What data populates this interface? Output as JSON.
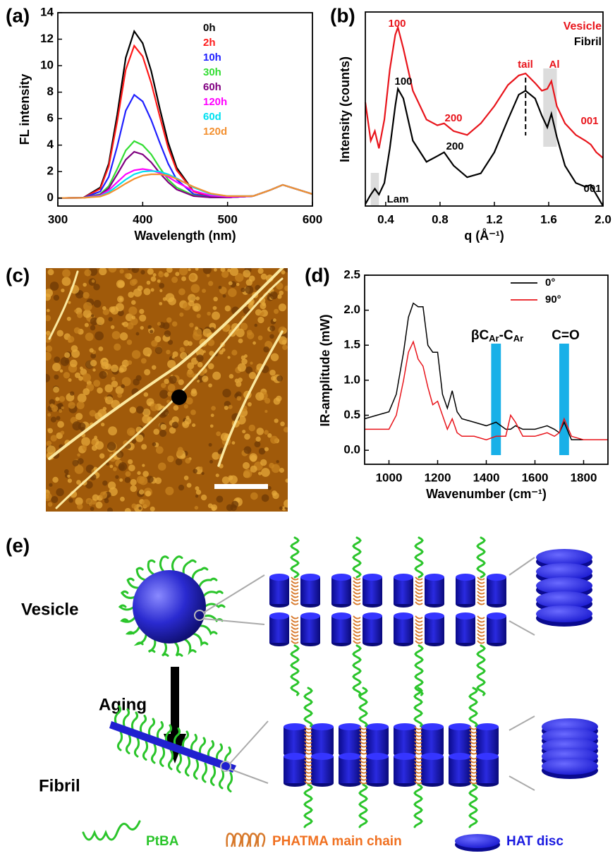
{
  "chart_data": [
    {
      "type": "line",
      "panel_label": "(a)",
      "xlabel": "Wavelength (nm)",
      "ylabel": "FL intensity",
      "x": [
        300,
        330,
        350,
        360,
        370,
        380,
        390,
        400,
        410,
        420,
        430,
        440,
        460,
        480,
        500,
        530,
        550,
        565,
        580,
        600
      ],
      "xlim": [
        300,
        600
      ],
      "ylim": [
        -0.6,
        14
      ],
      "xticks": [
        300,
        400,
        500,
        600
      ],
      "yticks": [
        0,
        2,
        4,
        6,
        8,
        10,
        12,
        14
      ],
      "series": [
        {
          "name": "0h",
          "color": "#000000",
          "values": [
            0,
            0.03,
            0.8,
            2.6,
            6.3,
            10.6,
            12.6,
            11.7,
            9.6,
            6.8,
            4.2,
            2.3,
            0.5,
            0.1,
            0.05,
            0.15,
            0.6,
            1.0,
            0.7,
            0.3
          ]
        },
        {
          "name": "2h",
          "color": "#ff1a1a",
          "values": [
            0,
            0.03,
            0.7,
            2.4,
            5.8,
            9.7,
            11.5,
            10.7,
            8.7,
            6.2,
            3.8,
            2.1,
            0.5,
            0.1,
            0.05,
            0.15,
            0.6,
            1.0,
            0.7,
            0.3
          ]
        },
        {
          "name": "10h",
          "color": "#1f1fff",
          "values": [
            0,
            0.02,
            0.5,
            1.6,
            3.9,
            6.6,
            7.8,
            7.3,
            5.9,
            4.2,
            2.6,
            1.4,
            0.3,
            0.08,
            0.05,
            0.15,
            0.6,
            1.0,
            0.7,
            0.3
          ]
        },
        {
          "name": "30h",
          "color": "#33dd33",
          "values": [
            0,
            0.02,
            0.3,
            0.9,
            2.2,
            3.6,
            4.3,
            4.0,
            3.3,
            2.3,
            1.4,
            0.8,
            0.2,
            0.05,
            0.05,
            0.15,
            0.6,
            1.0,
            0.7,
            0.3
          ]
        },
        {
          "name": "60h",
          "color": "#800080",
          "values": [
            0,
            0.02,
            0.25,
            0.75,
            1.8,
            2.9,
            3.5,
            3.3,
            2.7,
            1.9,
            1.2,
            0.65,
            0.15,
            0.05,
            0.05,
            0.15,
            0.6,
            1.0,
            0.7,
            0.3
          ]
        },
        {
          "name": "120h",
          "color": "#ff00ff",
          "values": [
            0,
            0.02,
            0.2,
            0.6,
            1.2,
            1.8,
            2.1,
            2.2,
            2.1,
            1.9,
            1.6,
            1.2,
            0.55,
            0.2,
            0.1,
            0.15,
            0.6,
            1.0,
            0.7,
            0.3
          ]
        },
        {
          "name": "60d",
          "color": "#00e0f0",
          "values": [
            0,
            0.02,
            0.15,
            0.45,
            0.9,
            1.4,
            1.8,
            2.0,
            2.05,
            2.0,
            1.8,
            1.5,
            0.8,
            0.3,
            0.15,
            0.15,
            0.6,
            1.0,
            0.7,
            0.3
          ]
        },
        {
          "name": "120d",
          "color": "#f39030",
          "values": [
            0,
            0.02,
            0.12,
            0.35,
            0.7,
            1.1,
            1.45,
            1.7,
            1.8,
            1.8,
            1.7,
            1.45,
            0.85,
            0.35,
            0.15,
            0.15,
            0.6,
            1.0,
            0.7,
            0.3
          ]
        }
      ]
    },
    {
      "type": "line",
      "panel_label": "(b)",
      "xlabel": "q (Å⁻¹)",
      "ylabel": "Intensity (counts)",
      "x": [
        0.25,
        0.29,
        0.32,
        0.35,
        0.39,
        0.43,
        0.47,
        0.49,
        0.53,
        0.6,
        0.7,
        0.78,
        0.83,
        0.9,
        1.0,
        1.1,
        1.2,
        1.3,
        1.38,
        1.43,
        1.5,
        1.55,
        1.59,
        1.62,
        1.66,
        1.72,
        1.8,
        1.87,
        1.91,
        1.95,
        2.0
      ],
      "xlim": [
        0.25,
        2.0
      ],
      "ylim": [
        0,
        10.1
      ],
      "xticks": [
        0.4,
        0.8,
        1.2,
        1.6,
        {
          "value": 2,
          "label": "2.0"
        }
      ],
      "series": [
        {
          "name": "Vesicle",
          "color": "#e8141b",
          "values": [
            5.4,
            3.4,
            3.9,
            3.0,
            4.5,
            7.1,
            8.9,
            9.3,
            8.2,
            6.0,
            4.5,
            4.2,
            4.3,
            3.9,
            3.7,
            4.3,
            5.2,
            6.3,
            6.8,
            6.9,
            6.4,
            6.0,
            6.1,
            6.5,
            5.2,
            4.3,
            3.7,
            3.4,
            3.2,
            2.8,
            2.5
          ]
        },
        {
          "name": "Fibril",
          "color": "#000000",
          "values": [
            0.1,
            0.6,
            0.9,
            0.6,
            1.2,
            3.0,
            5.2,
            6.1,
            5.6,
            3.4,
            2.3,
            2.6,
            2.8,
            2.1,
            1.5,
            1.7,
            2.8,
            4.5,
            5.8,
            6.0,
            5.6,
            4.7,
            4.1,
            4.8,
            3.6,
            2.1,
            1.2,
            1.0,
            1.1,
            0.6,
            0
          ]
        }
      ],
      "annotations": [
        {
          "text": "100",
          "color": "#e8141b"
        },
        {
          "text": "200",
          "color": "#e8141b"
        },
        {
          "text": "tail",
          "color": "#e8141b"
        },
        {
          "text": "Al",
          "color": "#e8141b"
        },
        {
          "text": "001",
          "color": "#e8141b"
        },
        {
          "text": "100",
          "color": "#000000"
        },
        {
          "text": "200",
          "color": "#000000"
        },
        {
          "text": "001",
          "color": "#000000"
        },
        {
          "text": "Lam",
          "color": "#000000"
        }
      ]
    },
    {
      "type": "line",
      "panel_label": "(d)",
      "xlabel": "Wavenumber (cm⁻¹)",
      "ylabel": "IR-amplitude (mW)",
      "x": [
        900,
        950,
        1000,
        1030,
        1060,
        1080,
        1100,
        1120,
        1140,
        1160,
        1180,
        1200,
        1220,
        1240,
        1260,
        1280,
        1300,
        1350,
        1400,
        1440,
        1480,
        1500,
        1520,
        1550,
        1600,
        1650,
        1680,
        1700,
        1720,
        1750,
        1800,
        1850,
        1900
      ],
      "xlim": [
        900,
        1900
      ],
      "ylim": [
        -0.2,
        2.5
      ],
      "xticks": [
        1000,
        1200,
        1400,
        1600,
        1800
      ],
      "yticks": [
        {
          "value": 0,
          "label": "0.0"
        },
        0.5,
        {
          "value": 1,
          "label": "1.0"
        },
        1.5,
        {
          "value": 2,
          "label": "2.0"
        },
        2.5
      ],
      "series": [
        {
          "name": "0°",
          "color": "#000000",
          "values": [
            0.45,
            0.5,
            0.55,
            0.8,
            1.4,
            1.9,
            2.1,
            2.05,
            2.05,
            1.5,
            1.4,
            1.4,
            0.8,
            0.6,
            0.85,
            0.55,
            0.45,
            0.4,
            0.35,
            0.4,
            0.3,
            0.3,
            0.35,
            0.3,
            0.3,
            0.35,
            0.3,
            0.25,
            0.4,
            0.15,
            0.15,
            0.15,
            0.15
          ]
        },
        {
          "name": "90°",
          "color": "#e8141b",
          "values": [
            0.3,
            0.3,
            0.3,
            0.5,
            1.0,
            1.4,
            1.55,
            1.3,
            1.2,
            0.9,
            0.65,
            0.7,
            0.5,
            0.3,
            0.45,
            0.25,
            0.2,
            0.2,
            0.15,
            0.2,
            0.2,
            0.5,
            0.4,
            0.2,
            0.2,
            0.25,
            0.2,
            0.25,
            0.45,
            0.2,
            0.15,
            0.15,
            0.15
          ]
        }
      ],
      "band_labels": [
        [
          "βC",
          "Ar",
          "-C",
          "Ar"
        ],
        [
          "C=O"
        ]
      ]
    }
  ],
  "afm_image": {
    "panel_label": "(c)"
  },
  "schematic": {
    "panel_label": "(e)",
    "vesicle": "Vesicle",
    "aging": "Aging",
    "fibril": "Fibril",
    "legend": [
      "PtBA",
      "PHATMA main chain",
      "HAT disc"
    ]
  }
}
